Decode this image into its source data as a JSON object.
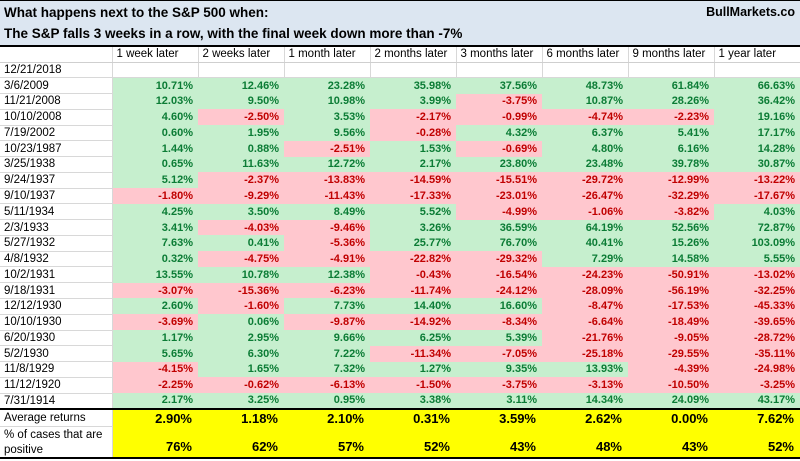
{
  "header": {
    "title_line1": "What happens next to the S&P 500 when:",
    "title_line2": "The S&P falls 3 weeks in a row, with the final week down more than -7%",
    "brand": "BullMarkets.co"
  },
  "colors": {
    "banner_bg": "#dce6f1",
    "positive_bg": "#c6efce",
    "positive_text": "#0b7c35",
    "negative_bg": "#ffc7ce",
    "negative_text": "#c00000",
    "summary_bg": "#ffff00",
    "gridline": "#d8d8d8",
    "border": "#000000"
  },
  "table": {
    "columns": [
      "1 week later",
      "2 weeks later",
      "1 month later",
      "2 months later",
      "3 months later",
      "6 months later",
      "9 months later",
      "1 year later"
    ],
    "rows": [
      {
        "date": "12/21/2018",
        "values": [
          "",
          "",
          "",
          "",
          "",
          "",
          "",
          ""
        ]
      },
      {
        "date": "3/6/2009",
        "values": [
          "10.71%",
          "12.46%",
          "23.28%",
          "35.98%",
          "37.56%",
          "48.73%",
          "61.84%",
          "66.63%"
        ]
      },
      {
        "date": "11/21/2008",
        "values": [
          "12.03%",
          "9.50%",
          "10.98%",
          "3.99%",
          "-3.75%",
          "10.87%",
          "28.26%",
          "36.42%"
        ]
      },
      {
        "date": "10/10/2008",
        "values": [
          "4.60%",
          "-2.50%",
          "3.53%",
          "-2.17%",
          "-0.99%",
          "-4.74%",
          "-2.23%",
          "19.16%"
        ]
      },
      {
        "date": "7/19/2002",
        "values": [
          "0.60%",
          "1.95%",
          "9.56%",
          "-0.28%",
          "4.32%",
          "6.37%",
          "5.41%",
          "17.17%"
        ]
      },
      {
        "date": "10/23/1987",
        "values": [
          "1.44%",
          "0.88%",
          "-2.51%",
          "1.53%",
          "-0.69%",
          "4.80%",
          "6.16%",
          "14.28%"
        ]
      },
      {
        "date": "3/25/1938",
        "values": [
          "0.65%",
          "11.63%",
          "12.72%",
          "2.17%",
          "23.80%",
          "23.48%",
          "39.78%",
          "30.87%"
        ]
      },
      {
        "date": "9/24/1937",
        "values": [
          "5.12%",
          "-2.37%",
          "-13.83%",
          "-14.59%",
          "-15.51%",
          "-29.72%",
          "-12.99%",
          "-13.22%"
        ]
      },
      {
        "date": "9/10/1937",
        "values": [
          "-1.80%",
          "-9.29%",
          "-11.43%",
          "-17.33%",
          "-23.01%",
          "-26.47%",
          "-32.29%",
          "-17.67%"
        ]
      },
      {
        "date": "5/11/1934",
        "values": [
          "4.25%",
          "3.50%",
          "8.49%",
          "5.52%",
          "-4.99%",
          "-1.06%",
          "-3.82%",
          "4.03%"
        ]
      },
      {
        "date": "2/3/1933",
        "values": [
          "3.41%",
          "-4.03%",
          "-9.46%",
          "3.26%",
          "36.59%",
          "64.19%",
          "52.56%",
          "72.87%"
        ]
      },
      {
        "date": "5/27/1932",
        "values": [
          "7.63%",
          "0.41%",
          "-5.36%",
          "25.77%",
          "76.70%",
          "40.41%",
          "15.26%",
          "103.09%"
        ]
      },
      {
        "date": "4/8/1932",
        "values": [
          "0.32%",
          "-4.75%",
          "-4.91%",
          "-22.82%",
          "-29.32%",
          "7.29%",
          "14.58%",
          "5.55%"
        ]
      },
      {
        "date": "10/2/1931",
        "values": [
          "13.55%",
          "10.78%",
          "12.38%",
          "-0.43%",
          "-16.54%",
          "-24.23%",
          "-50.91%",
          "-13.02%"
        ]
      },
      {
        "date": "9/18/1931",
        "values": [
          "-3.07%",
          "-15.36%",
          "-6.23%",
          "-11.74%",
          "-24.12%",
          "-28.09%",
          "-56.19%",
          "-32.25%"
        ]
      },
      {
        "date": "12/12/1930",
        "values": [
          "2.60%",
          "-1.60%",
          "7.73%",
          "14.40%",
          "16.60%",
          "-8.47%",
          "-17.53%",
          "-45.33%"
        ]
      },
      {
        "date": "10/10/1930",
        "values": [
          "-3.69%",
          "0.06%",
          "-9.87%",
          "-14.92%",
          "-8.34%",
          "-6.64%",
          "-18.49%",
          "-39.65%"
        ]
      },
      {
        "date": "6/20/1930",
        "values": [
          "1.17%",
          "2.95%",
          "9.66%",
          "6.25%",
          "5.39%",
          "-21.76%",
          "-9.05%",
          "-28.72%"
        ]
      },
      {
        "date": "5/2/1930",
        "values": [
          "5.65%",
          "6.30%",
          "7.22%",
          "-11.34%",
          "-7.05%",
          "-25.18%",
          "-29.55%",
          "-35.11%"
        ]
      },
      {
        "date": "11/8/1929",
        "values": [
          "-4.15%",
          "1.65%",
          "7.32%",
          "1.27%",
          "9.35%",
          "13.93%",
          "-4.39%",
          "-24.98%"
        ]
      },
      {
        "date": "11/12/1920",
        "values": [
          "-2.25%",
          "-0.62%",
          "-6.13%",
          "-1.50%",
          "-3.75%",
          "-3.13%",
          "-10.50%",
          "-3.25%"
        ]
      },
      {
        "date": "7/31/1914",
        "values": [
          "2.17%",
          "3.25%",
          "0.95%",
          "3.38%",
          "3.11%",
          "14.34%",
          "24.09%",
          "43.17%"
        ]
      }
    ],
    "summary": {
      "avg_label": "Average returns",
      "avg_values": [
        "2.90%",
        "1.18%",
        "2.10%",
        "0.31%",
        "3.59%",
        "2.62%",
        "0.00%",
        "7.62%"
      ],
      "pct_label": "% of cases that are positive",
      "pct_values": [
        "76%",
        "62%",
        "57%",
        "52%",
        "43%",
        "48%",
        "43%",
        "52%"
      ]
    }
  }
}
